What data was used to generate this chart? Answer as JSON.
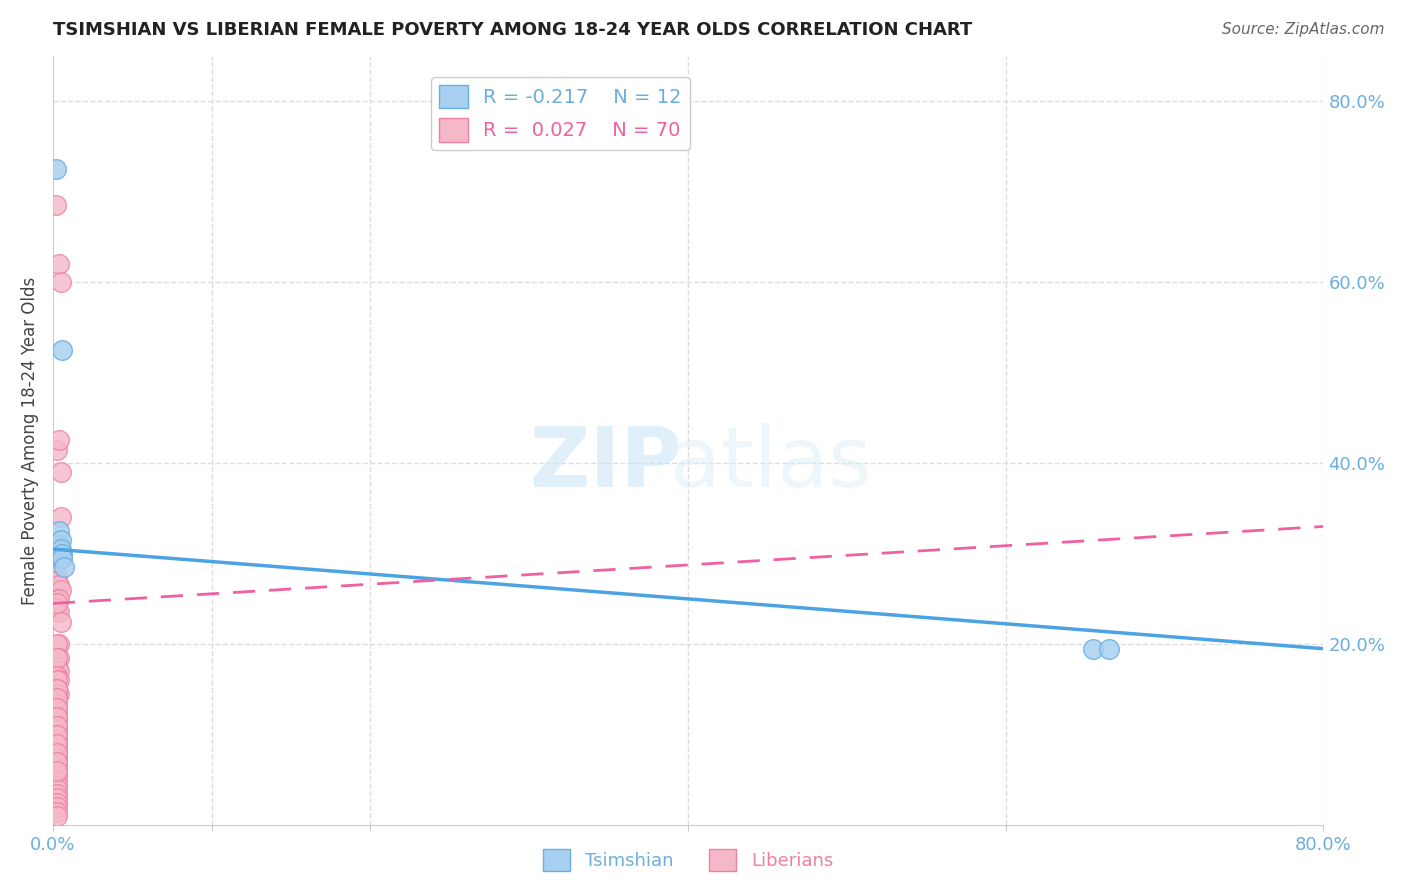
{
  "title": "TSIMSHIAN VS LIBERIAN FEMALE POVERTY AMONG 18-24 YEAR OLDS CORRELATION CHART",
  "source": "Source: ZipAtlas.com",
  "ylabel": "Female Poverty Among 18-24 Year Olds",
  "ylabel_right_ticks": [
    "80.0%",
    "60.0%",
    "40.0%",
    "20.0%"
  ],
  "ylabel_right_vals": [
    0.8,
    0.6,
    0.4,
    0.2
  ],
  "watermark_zip": "ZIP",
  "watermark_atlas": "atlas",
  "tsimshian_R": -0.217,
  "tsimshian_N": 12,
  "liberian_R": 0.027,
  "liberian_N": 70,
  "tsimshian_color": "#A8D0F0",
  "liberian_color": "#F5B8C8",
  "tsimshian_edge": "#6AAEE0",
  "liberian_edge": "#F080A0",
  "tsimshian_x": [
    0.002,
    0.006,
    0.003,
    0.004,
    0.004,
    0.005,
    0.005,
    0.006,
    0.006,
    0.007,
    0.655,
    0.665
  ],
  "tsimshian_y": [
    0.725,
    0.525,
    0.305,
    0.325,
    0.31,
    0.315,
    0.305,
    0.3,
    0.295,
    0.285,
    0.195,
    0.195
  ],
  "liberian_x": [
    0.002,
    0.004,
    0.005,
    0.003,
    0.004,
    0.005,
    0.003,
    0.004,
    0.005,
    0.003,
    0.004,
    0.005,
    0.006,
    0.003,
    0.004,
    0.005,
    0.003,
    0.004,
    0.003,
    0.004,
    0.005,
    0.003,
    0.004,
    0.003,
    0.004,
    0.003,
    0.004,
    0.003,
    0.003,
    0.004,
    0.003,
    0.003,
    0.004,
    0.003,
    0.003,
    0.003,
    0.003,
    0.003,
    0.003,
    0.003,
    0.003,
    0.003,
    0.003,
    0.003,
    0.003,
    0.003,
    0.003,
    0.003,
    0.003,
    0.003,
    0.003,
    0.003,
    0.003,
    0.003,
    0.003,
    0.003,
    0.003,
    0.003,
    0.003,
    0.003,
    0.003,
    0.003,
    0.003,
    0.003,
    0.003,
    0.003,
    0.003,
    0.003,
    0.003,
    0.003
  ],
  "liberian_y": [
    0.685,
    0.62,
    0.6,
    0.415,
    0.425,
    0.39,
    0.305,
    0.31,
    0.34,
    0.275,
    0.3,
    0.295,
    0.295,
    0.27,
    0.265,
    0.26,
    0.25,
    0.25,
    0.24,
    0.235,
    0.225,
    0.245,
    0.2,
    0.2,
    0.185,
    0.175,
    0.17,
    0.185,
    0.165,
    0.16,
    0.16,
    0.15,
    0.145,
    0.145,
    0.135,
    0.13,
    0.125,
    0.12,
    0.115,
    0.11,
    0.105,
    0.1,
    0.095,
    0.09,
    0.085,
    0.08,
    0.075,
    0.07,
    0.065,
    0.06,
    0.055,
    0.05,
    0.045,
    0.04,
    0.035,
    0.03,
    0.025,
    0.02,
    0.015,
    0.01,
    0.15,
    0.14,
    0.13,
    0.12,
    0.11,
    0.1,
    0.09,
    0.08,
    0.07,
    0.06
  ],
  "xmin": 0.0,
  "xmax": 0.8,
  "ymin": 0.0,
  "ymax": 0.85,
  "ts_line_x": [
    0.0,
    0.8
  ],
  "ts_line_y": [
    0.305,
    0.195
  ],
  "lb_line_x": [
    0.0,
    0.8
  ],
  "lb_line_y": [
    0.245,
    0.33
  ],
  "grid_color": "#DDDDDD",
  "background_color": "#FFFFFF",
  "tick_color": "#6AAEE0"
}
